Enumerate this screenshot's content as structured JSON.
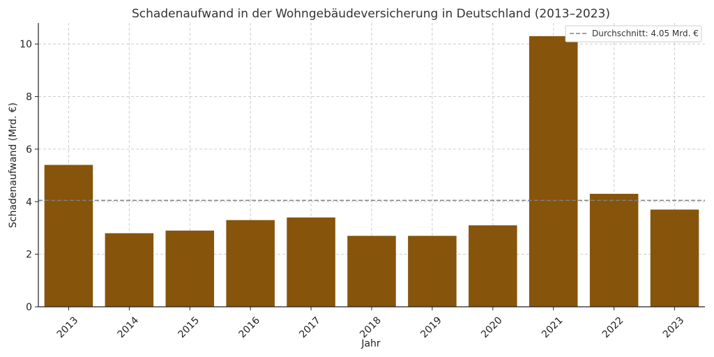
{
  "chart_data": {
    "type": "bar",
    "title": "Schadenaufwand in der Wohngebäudeversicherung in Deutschland (2013–2023)",
    "xlabel": "Jahr",
    "ylabel": "Schadenaufwand (Mrd. €)",
    "categories": [
      "2013",
      "2014",
      "2015",
      "2016",
      "2017",
      "2018",
      "2019",
      "2020",
      "2021",
      "2022",
      "2023"
    ],
    "values": [
      5.4,
      2.8,
      2.9,
      3.3,
      3.4,
      2.7,
      2.7,
      3.1,
      10.3,
      4.3,
      3.7
    ],
    "ylim": [
      0,
      10.8
    ],
    "yticks": [
      0,
      2,
      4,
      6,
      8,
      10
    ],
    "grid": true,
    "bar_color": "#86540b",
    "reference_line": {
      "value": 4.05,
      "label": "Durchschnitt: 4.05 Mrd. €",
      "color": "#808080",
      "style": "dashed"
    },
    "legend_position": "top-right"
  }
}
